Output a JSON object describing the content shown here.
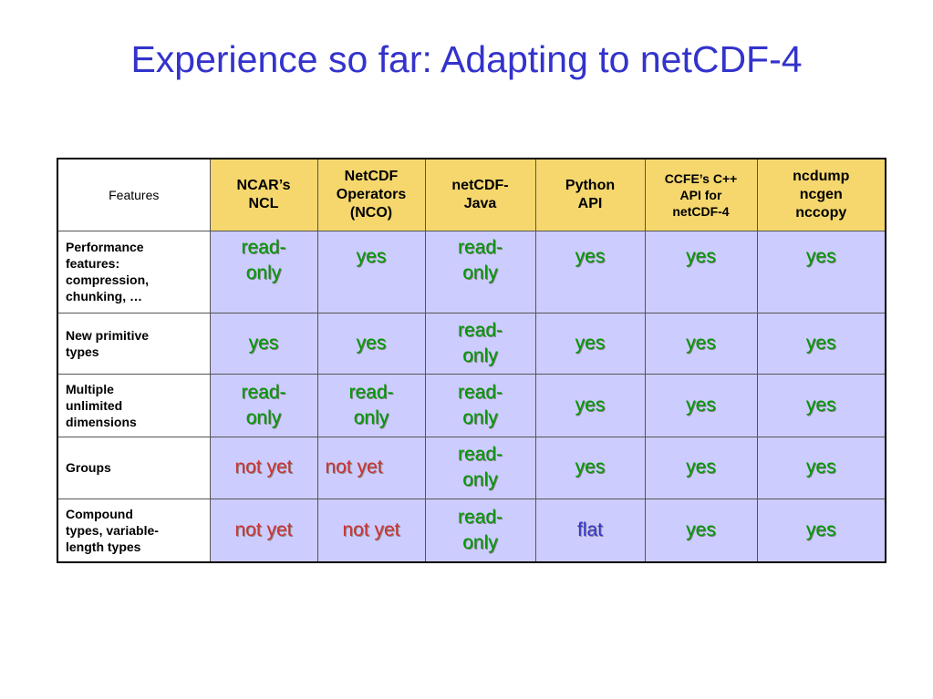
{
  "title": "Experience so far: Adapting to netCDF-4",
  "table": {
    "corner": "Features",
    "columns": [
      {
        "line1": "NCAR’s",
        "line2": "NCL",
        "line3": ""
      },
      {
        "line1": "NetCDF",
        "line2": "Operators",
        "line3": "(NCO)"
      },
      {
        "line1": "netCDF-",
        "line2": "Java",
        "line3": ""
      },
      {
        "line1": "Python",
        "line2": "API",
        "line3": ""
      },
      {
        "line1": "CCFE’s C++",
        "line2": "API for",
        "line3": "netCDF-4"
      },
      {
        "line1": "ncdump",
        "line2": "ncgen",
        "line3": "nccopy"
      }
    ],
    "rows": [
      {
        "feature": [
          "Performance",
          "features:",
          "compression,",
          "chunking, …"
        ],
        "cells": [
          {
            "l1": "read-",
            "l2": "only",
            "status": "ro"
          },
          {
            "l1": "yes",
            "l2": "",
            "status": "yes"
          },
          {
            "l1": "read-",
            "l2": "only",
            "status": "ro"
          },
          {
            "l1": "yes",
            "l2": "",
            "status": "yes"
          },
          {
            "l1": "yes",
            "l2": "",
            "status": "yes"
          },
          {
            "l1": "yes",
            "l2": "",
            "status": "yes"
          }
        ]
      },
      {
        "feature": [
          "New primitive",
          "types"
        ],
        "cells": [
          {
            "l1": "yes",
            "l2": "",
            "status": "yes"
          },
          {
            "l1": "yes",
            "l2": "",
            "status": "yes"
          },
          {
            "l1": "read-",
            "l2": "only",
            "status": "ro"
          },
          {
            "l1": "yes",
            "l2": "",
            "status": "yes"
          },
          {
            "l1": "yes",
            "l2": "",
            "status": "yes"
          },
          {
            "l1": "yes",
            "l2": "",
            "status": "yes"
          }
        ]
      },
      {
        "feature": [
          "Multiple",
          "unlimited",
          "dimensions"
        ],
        "cells": [
          {
            "l1": "read-",
            "l2": "only",
            "status": "ro"
          },
          {
            "l1": "read-",
            "l2": "only",
            "status": "ro"
          },
          {
            "l1": "read-",
            "l2": "only",
            "status": "ro"
          },
          {
            "l1": "yes",
            "l2": "",
            "status": "yes"
          },
          {
            "l1": "yes",
            "l2": "",
            "status": "yes"
          },
          {
            "l1": "yes",
            "l2": "",
            "status": "yes"
          }
        ]
      },
      {
        "feature": [
          "Groups"
        ],
        "cells": [
          {
            "l1": "not yet",
            "l2": "",
            "status": "ny"
          },
          {
            "l1": "not yet",
            "l2": "",
            "status": "ny"
          },
          {
            "l1": "read-",
            "l2": "only",
            "status": "ro"
          },
          {
            "l1": "yes",
            "l2": "",
            "status": "yes"
          },
          {
            "l1": "yes",
            "l2": "",
            "status": "yes"
          },
          {
            "l1": "yes",
            "l2": "",
            "status": "yes"
          }
        ]
      },
      {
        "feature": [
          "Compound",
          "types, variable-",
          "length types"
        ],
        "cells": [
          {
            "l1": "not yet",
            "l2": "",
            "status": "ny"
          },
          {
            "l1": "not yet",
            "l2": "",
            "status": "ny"
          },
          {
            "l1": "read-",
            "l2": "only",
            "status": "ro"
          },
          {
            "l1": "flat",
            "l2": "",
            "status": "flat"
          },
          {
            "l1": "yes",
            "l2": "",
            "status": "yes"
          },
          {
            "l1": "yes",
            "l2": "",
            "status": "yes"
          }
        ]
      }
    ]
  },
  "colors": {
    "title": "#3333cc",
    "header_bg": "#f5d76e",
    "cell_bg": "#ccccff",
    "yes": "#009900",
    "not_yet": "#cc3333",
    "flat": "#3333cc"
  }
}
